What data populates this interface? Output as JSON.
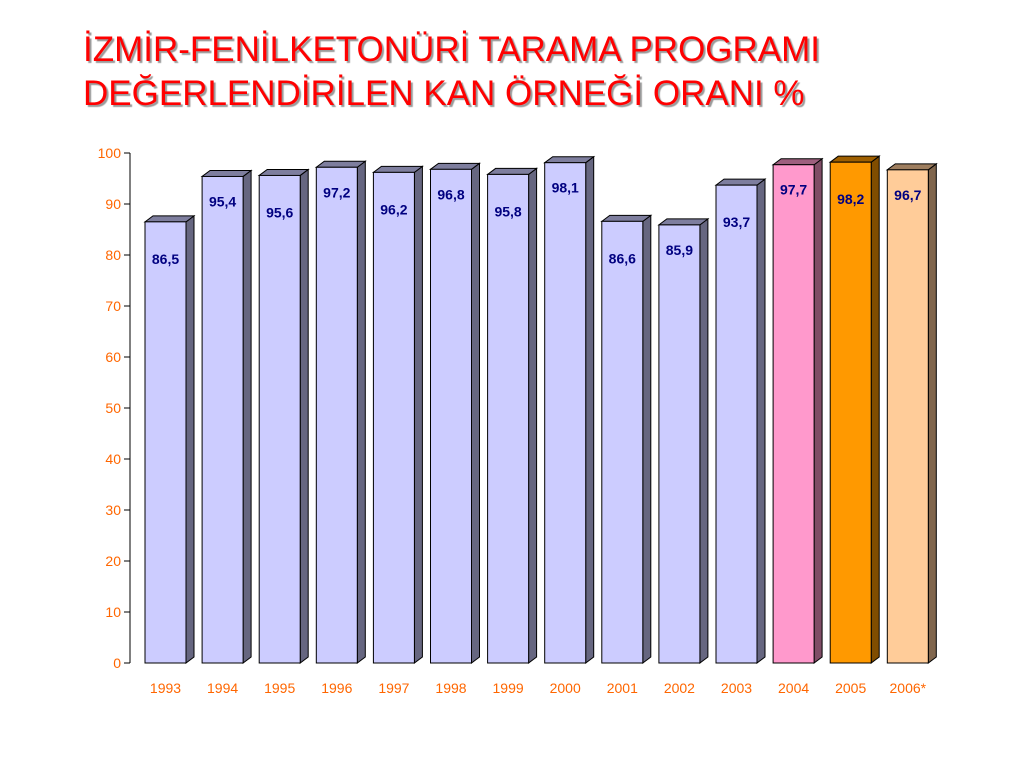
{
  "title_lines": [
    "İZMİR-FENİLKETONÜRİ TARAMA PROGRAMI",
    "DEĞERLENDİRİLEN KAN ÖRNEĞİ ORANI %"
  ],
  "chart_data": {
    "type": "bar",
    "title": "İZMİR-FENİLKETONÜRİ TARAMA PROGRAMI DEĞERLENDİRİLEN KAN ÖRNEĞİ ORANI %",
    "categories": [
      "1993",
      "1994",
      "1995",
      "1996",
      "1997",
      "1998",
      "1999",
      "2000",
      "2001",
      "2002",
      "2003",
      "2004",
      "2005",
      "2006*"
    ],
    "values": [
      86.5,
      95.4,
      95.6,
      97.2,
      96.2,
      96.8,
      95.8,
      98.1,
      86.6,
      85.9,
      93.7,
      97.7,
      98.2,
      96.7
    ],
    "labels": [
      "86,5",
      "95,4",
      "95,6",
      "97,2",
      "96,2",
      "96,8",
      "95,8",
      "98,1",
      "86,6",
      "85,9",
      "93,7",
      "97,7",
      "98,2",
      "96,7"
    ],
    "bar_colors": [
      "#ccccff",
      "#ccccff",
      "#ccccff",
      "#ccccff",
      "#ccccff",
      "#ccccff",
      "#ccccff",
      "#ccccff",
      "#ccccff",
      "#ccccff",
      "#ccccff",
      "#ff99cc",
      "#ff9900",
      "#ffcc99"
    ],
    "yticks": [
      0,
      10,
      20,
      30,
      40,
      50,
      60,
      70,
      80,
      90,
      100
    ],
    "ylim": [
      0,
      100
    ],
    "style": "3d-bars",
    "grid": false,
    "legend": "none",
    "xlabel": "",
    "ylabel": ""
  }
}
